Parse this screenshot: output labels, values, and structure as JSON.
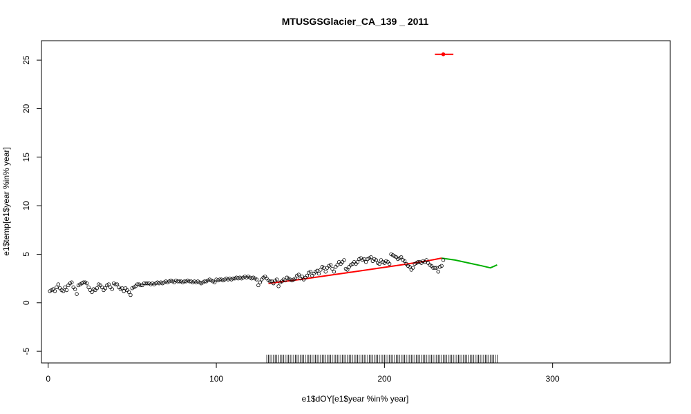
{
  "chart_data": {
    "type": "scatter",
    "title": "MTUSGSGlacier_CA_139 _ 2011",
    "xlabel": "e1$dOY[e1$year %in% year]",
    "ylabel": "e1$temp[e1$year %in% year]",
    "xlim": [
      -4,
      370
    ],
    "ylim": [
      -6.2,
      27
    ],
    "x_ticks": [
      0,
      100,
      200,
      300
    ],
    "y_ticks": [
      -5,
      0,
      5,
      10,
      15,
      20,
      25
    ],
    "grid": false,
    "legend": "none",
    "points_x_start": 1,
    "points": [
      1.2,
      1.3,
      1.4,
      1.2,
      1.6,
      1.9,
      1.5,
      1.3,
      1.2,
      1.6,
      1.3,
      1.8,
      2.0,
      2.1,
      1.6,
      1.4,
      0.9,
      1.8,
      1.9,
      2.0,
      2.1,
      2.1,
      2.0,
      1.6,
      1.3,
      1.1,
      1.4,
      1.3,
      1.5,
      1.9,
      1.8,
      1.6,
      1.3,
      1.5,
      1.8,
      1.9,
      1.6,
      1.4,
      2.0,
      1.9,
      1.9,
      1.6,
      1.4,
      1.5,
      1.2,
      1.5,
      1.3,
      1.1,
      0.8,
      1.5,
      1.6,
      1.7,
      1.9,
      1.9,
      1.8,
      1.8,
      2.0,
      2.0,
      2.0,
      2.0,
      1.9,
      2.0,
      1.9,
      2.0,
      2.1,
      2.0,
      2.1,
      2.0,
      2.1,
      2.2,
      2.1,
      2.2,
      2.3,
      2.2,
      2.1,
      2.3,
      2.2,
      2.2,
      2.2,
      2.1,
      2.2,
      2.2,
      2.3,
      2.2,
      2.2,
      2.1,
      2.2,
      2.1,
      2.2,
      2.1,
      2.0,
      2.1,
      2.2,
      2.2,
      2.3,
      2.4,
      2.3,
      2.2,
      2.1,
      2.4,
      2.3,
      2.4,
      2.4,
      2.3,
      2.4,
      2.5,
      2.4,
      2.5,
      2.4,
      2.5,
      2.5,
      2.6,
      2.5,
      2.6,
      2.5,
      2.6,
      2.7,
      2.6,
      2.7,
      2.6,
      2.5,
      2.6,
      2.5,
      2.4,
      1.8,
      2.1,
      2.4,
      2.6,
      2.7,
      2.5,
      2.3,
      2.2,
      2.2,
      2.0,
      2.3,
      2.4,
      1.7,
      2.1,
      2.2,
      2.4,
      2.3,
      2.6,
      2.5,
      2.4,
      2.3,
      2.4,
      2.5,
      2.8,
      2.9,
      2.5,
      2.7,
      2.4,
      2.6,
      2.8,
      3.1,
      3.2,
      2.8,
      3.0,
      3.2,
      3.3,
      3.0,
      3.4,
      3.7,
      3.6,
      3.2,
      3.6,
      3.8,
      3.9,
      3.5,
      3.2,
      3.7,
      3.9,
      4.2,
      4.0,
      4.2,
      4.4,
      3.5,
      3.4,
      3.7,
      3.9,
      4.0,
      4.2,
      4.0,
      4.2,
      4.5,
      4.6,
      4.4,
      4.5,
      4.2,
      4.5,
      4.6,
      4.7,
      4.3,
      4.5,
      4.4,
      4.1,
      4.0,
      4.4,
      4.2,
      4.1,
      4.3,
      4.2,
      4.0,
      5.0,
      4.9,
      4.8,
      4.7,
      4.5,
      4.6,
      4.7,
      4.4,
      4.3,
      4.0,
      3.8,
      3.7,
      3.4,
      3.6,
      4.0,
      4.1,
      4.2,
      4.2,
      4.1,
      4.3,
      4.2,
      4.4,
      4.1,
      3.9,
      3.8,
      3.6,
      3.6,
      3.6,
      3.2,
      3.7,
      3.8,
      4.4
    ],
    "trend_series": [
      {
        "color": "#ff0000",
        "x": [
          131,
          150,
          170,
          190,
          210,
          225,
          234
        ],
        "y": [
          2.0,
          2.4,
          2.9,
          3.4,
          3.9,
          4.3,
          4.6
        ]
      },
      {
        "color": "#00b000",
        "x": [
          234,
          242,
          250,
          258,
          263,
          267
        ],
        "y": [
          4.6,
          4.4,
          4.1,
          3.8,
          3.6,
          3.9
        ]
      }
    ],
    "outlier": {
      "x": 235,
      "y": 25.6,
      "x_min": 230,
      "x_max": 241,
      "color": "#ff0000"
    },
    "rug": {
      "x_start": 130,
      "x_end": 267,
      "step": 1
    }
  }
}
